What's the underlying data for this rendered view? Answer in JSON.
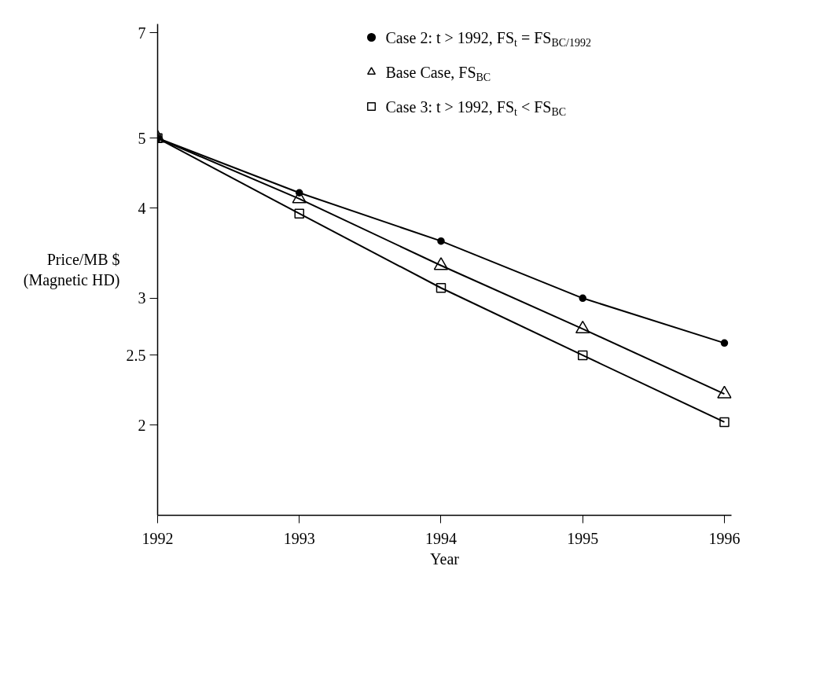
{
  "chart_data": {
    "type": "line",
    "xlabel": "Year",
    "ylabel": "Price/MB $\n(Magnetic HD)",
    "x": [
      1992,
      1993,
      1994,
      1995,
      1996
    ],
    "series": [
      {
        "name": "Case 2: t > 1992, FS$_{t}$ = FS$_{BC/1992}$",
        "color": "#000000",
        "marker": "circle",
        "values": [
          5,
          4.2,
          3.6,
          3.0,
          2.6
        ]
      },
      {
        "name": "Base Case, FS$_{BC}$",
        "color": "#000000",
        "marker": "triangle",
        "values": [
          5,
          4.12,
          3.33,
          2.72,
          2.21
        ]
      },
      {
        "name": "Case 3: t > 1992, FS$_{t}$ < FS$_{BC}$",
        "color": "#000000",
        "marker": "square",
        "values": [
          5,
          3.93,
          3.1,
          2.5,
          2.02
        ]
      }
    ],
    "log": "y",
    "xlim": [
      1992,
      1996.05
    ],
    "xticks": [
      1992,
      1993,
      1994,
      1995,
      1996
    ],
    "ylim": [
      1.5,
      7.2
    ],
    "yticks": [
      2,
      2.5,
      3,
      4,
      5,
      7
    ],
    "grid": false,
    "legend": "top right",
    "line_style": "solid"
  }
}
